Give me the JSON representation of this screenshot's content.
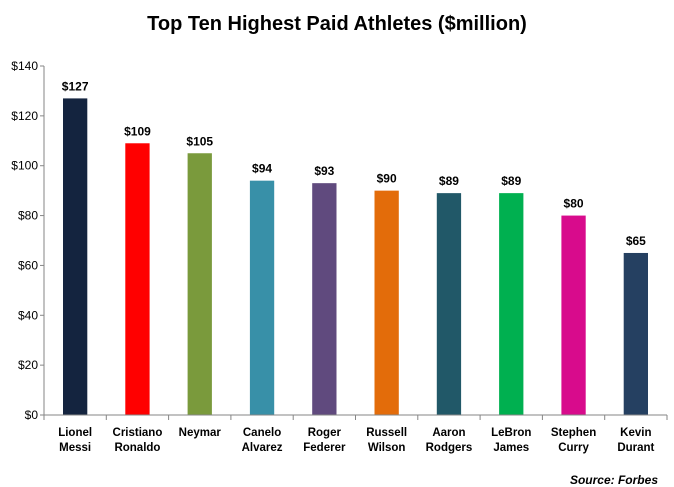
{
  "chart_data": {
    "type": "bar",
    "title": "Top Ten Highest Paid Athletes ($million)",
    "categories": [
      [
        "Lionel",
        "Messi"
      ],
      [
        "Cristiano",
        "Ronaldo"
      ],
      [
        "Neymar"
      ],
      [
        "Canelo",
        "Alvarez"
      ],
      [
        "Roger",
        "Federer"
      ],
      [
        "Russell",
        "Wilson"
      ],
      [
        "Aaron",
        "Rodgers"
      ],
      [
        "LeBron",
        "James"
      ],
      [
        "Stephen",
        "Curry"
      ],
      [
        "Kevin",
        "Durant"
      ]
    ],
    "values": [
      127,
      109,
      105,
      94,
      93,
      90,
      89,
      89,
      80,
      65
    ],
    "value_labels": [
      "$127",
      "$109",
      "$105",
      "$94",
      "$93",
      "$90",
      "$89",
      "$89",
      "$80",
      "$65"
    ],
    "colors": [
      "#14243f",
      "#ff0000",
      "#7a9a3c",
      "#3890a8",
      "#604a7e",
      "#e36c0a",
      "#215868",
      "#00b050",
      "#d80b8c",
      "#254061"
    ],
    "ylim": [
      0,
      140
    ],
    "yticks": [
      "$0",
      "$20",
      "$40",
      "$60",
      "$80",
      "$100",
      "$120",
      "$140"
    ],
    "ytick_values": [
      0,
      20,
      40,
      60,
      80,
      100,
      120,
      140
    ],
    "grid": false,
    "legend": "none",
    "source": "Source: Forbes"
  }
}
